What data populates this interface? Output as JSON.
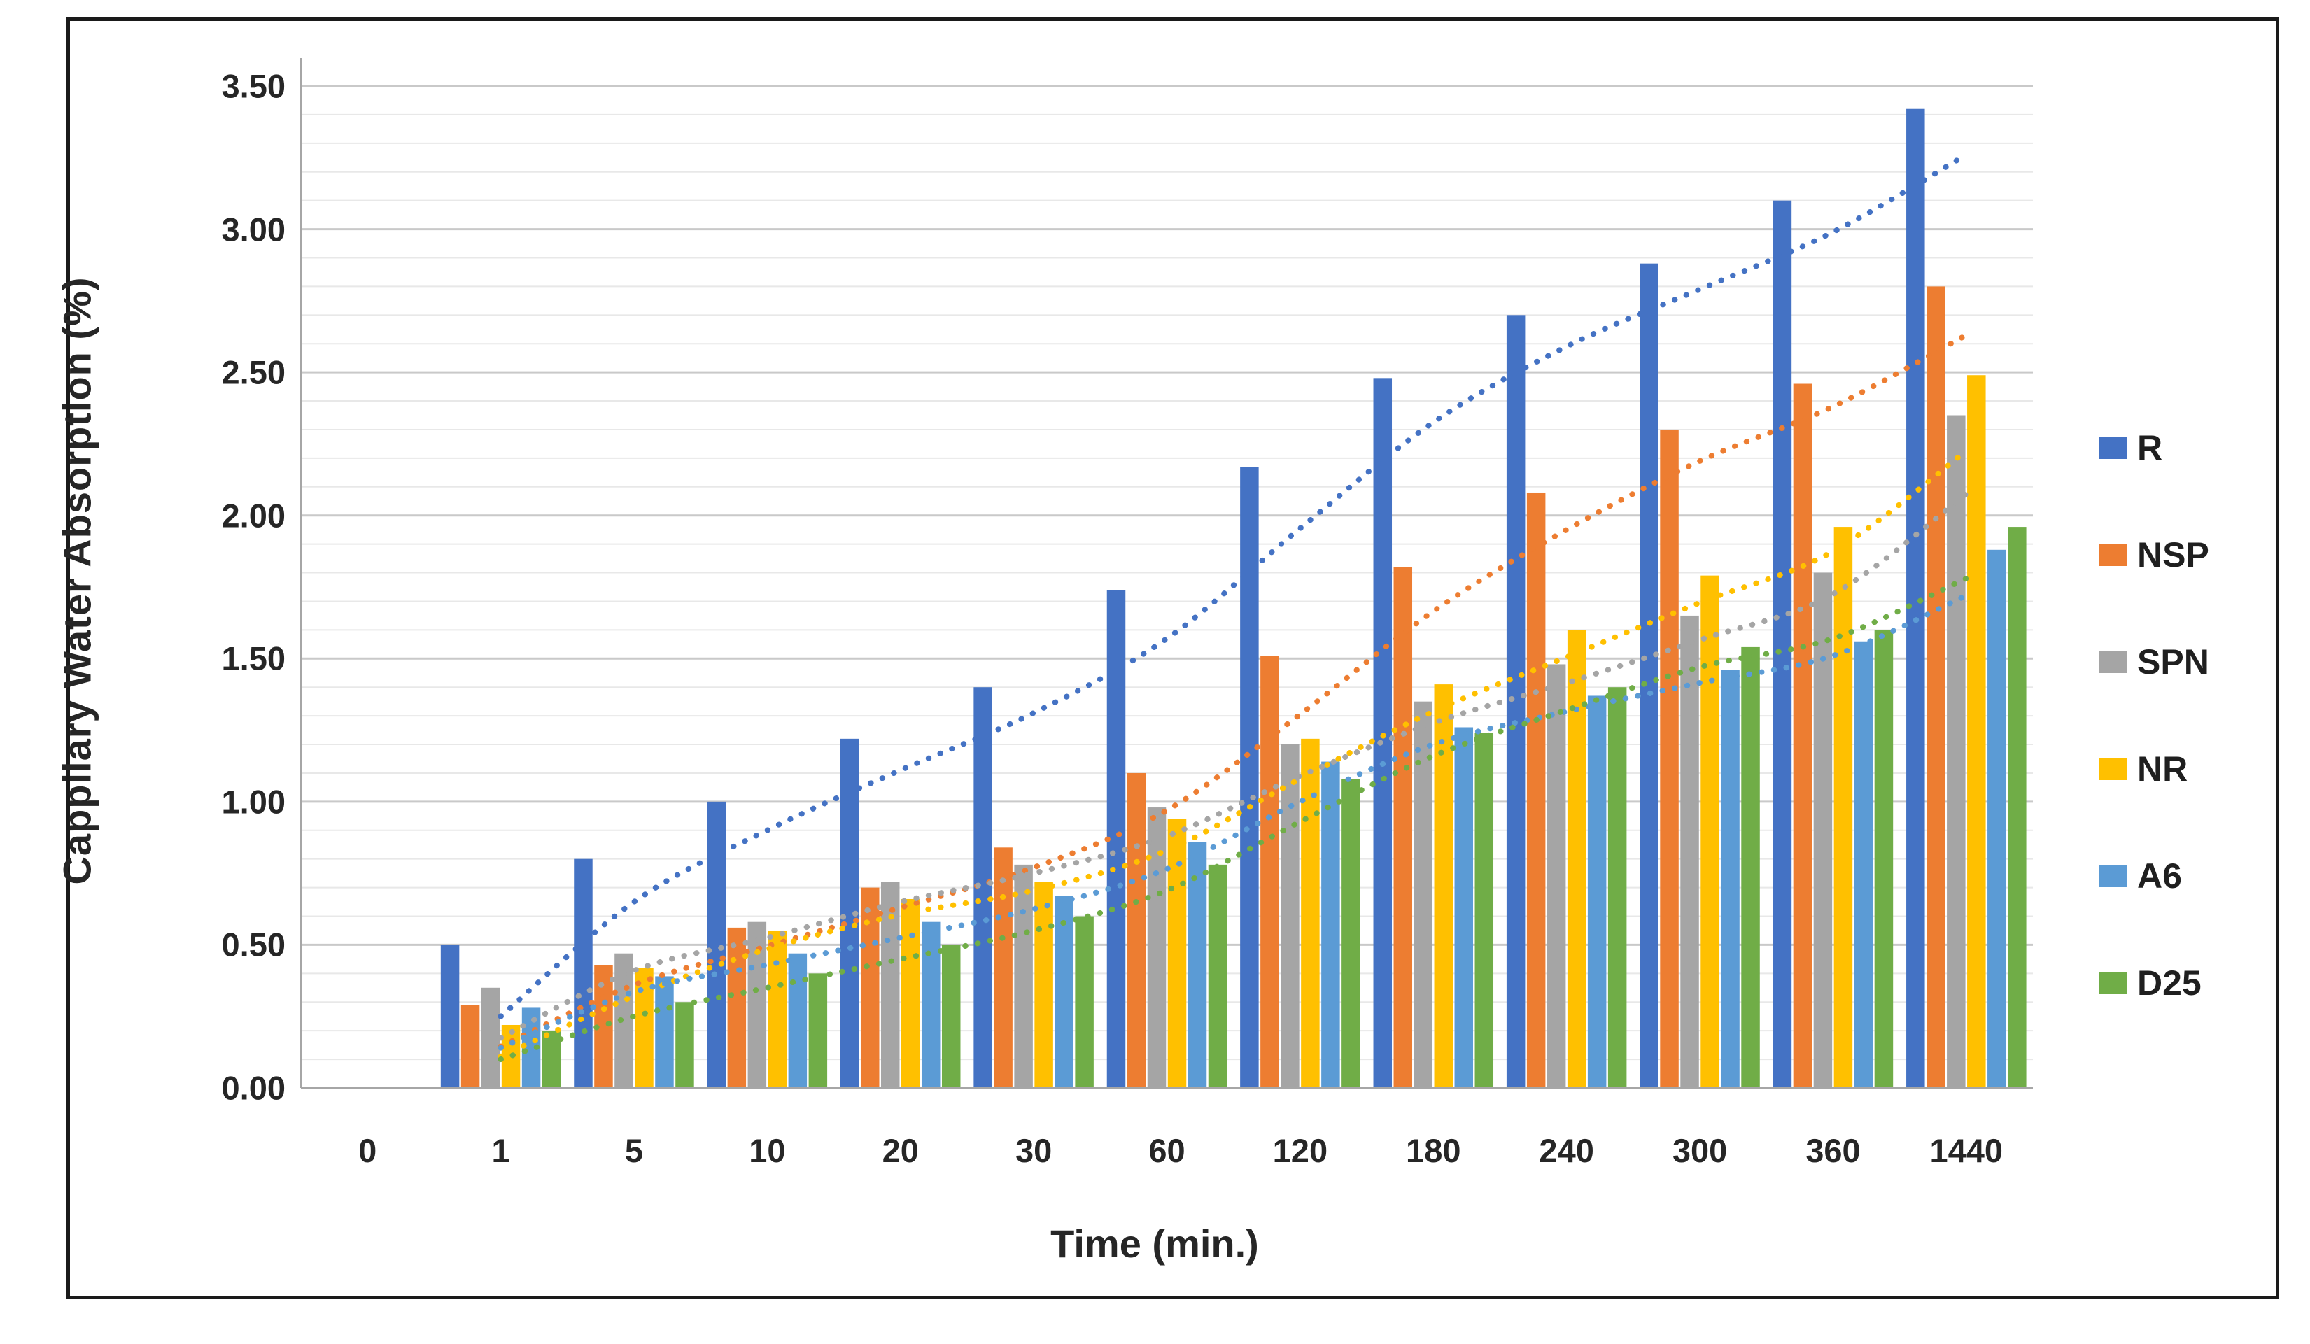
{
  "chart_data": {
    "type": "bar",
    "title": "",
    "xlabel": "Time (min.)",
    "ylabel": "Cappilary Water Absorption (%)",
    "categories": [
      "0",
      "1",
      "5",
      "10",
      "20",
      "30",
      "60",
      "120",
      "180",
      "240",
      "300",
      "360",
      "1440"
    ],
    "y_tick_labels": [
      "0.00",
      "0.50",
      "1.00",
      "1.50",
      "2.00",
      "2.50",
      "3.00",
      "3.50"
    ],
    "ylim": [
      0,
      3.5
    ],
    "y_major_step": 0.5,
    "y_minor_step": 0.1,
    "grid": "horizontal-only",
    "legend_position": "right",
    "trendline": {
      "type": "moving_average",
      "period": 2,
      "style": "dotted"
    },
    "series": [
      {
        "name": "R",
        "color": "#4472C4",
        "values": [
          0,
          0.5,
          0.8,
          1.0,
          1.22,
          1.4,
          1.74,
          2.17,
          2.48,
          2.7,
          2.88,
          3.1,
          3.42
        ]
      },
      {
        "name": "NSP",
        "color": "#ED7D31",
        "values": [
          0,
          0.29,
          0.43,
          0.56,
          0.7,
          0.84,
          1.1,
          1.51,
          1.82,
          2.08,
          2.3,
          2.46,
          2.8
        ]
      },
      {
        "name": "SPN",
        "color": "#A5A5A5",
        "values": [
          0,
          0.35,
          0.47,
          0.58,
          0.72,
          0.78,
          0.98,
          1.2,
          1.35,
          1.48,
          1.65,
          1.8,
          2.35
        ]
      },
      {
        "name": "NR",
        "color": "#FFC000",
        "values": [
          0,
          0.22,
          0.42,
          0.55,
          0.66,
          0.72,
          0.94,
          1.22,
          1.41,
          1.6,
          1.79,
          1.96,
          2.49
        ]
      },
      {
        "name": "A6",
        "color": "#5B9BD5",
        "values": [
          0,
          0.28,
          0.39,
          0.47,
          0.58,
          0.67,
          0.86,
          1.14,
          1.26,
          1.37,
          1.46,
          1.56,
          1.88
        ]
      },
      {
        "name": "D25",
        "color": "#70AD47",
        "values": [
          0,
          0.2,
          0.3,
          0.4,
          0.5,
          0.6,
          0.78,
          1.08,
          1.24,
          1.4,
          1.54,
          1.6,
          1.96
        ]
      }
    ],
    "colors": {
      "axis_line": "#A6A6A6",
      "major_grid": "#C9C9C9",
      "minor_grid": "#E8E8E8",
      "text": "#262626",
      "frame_border": "#1A1A1A"
    }
  }
}
